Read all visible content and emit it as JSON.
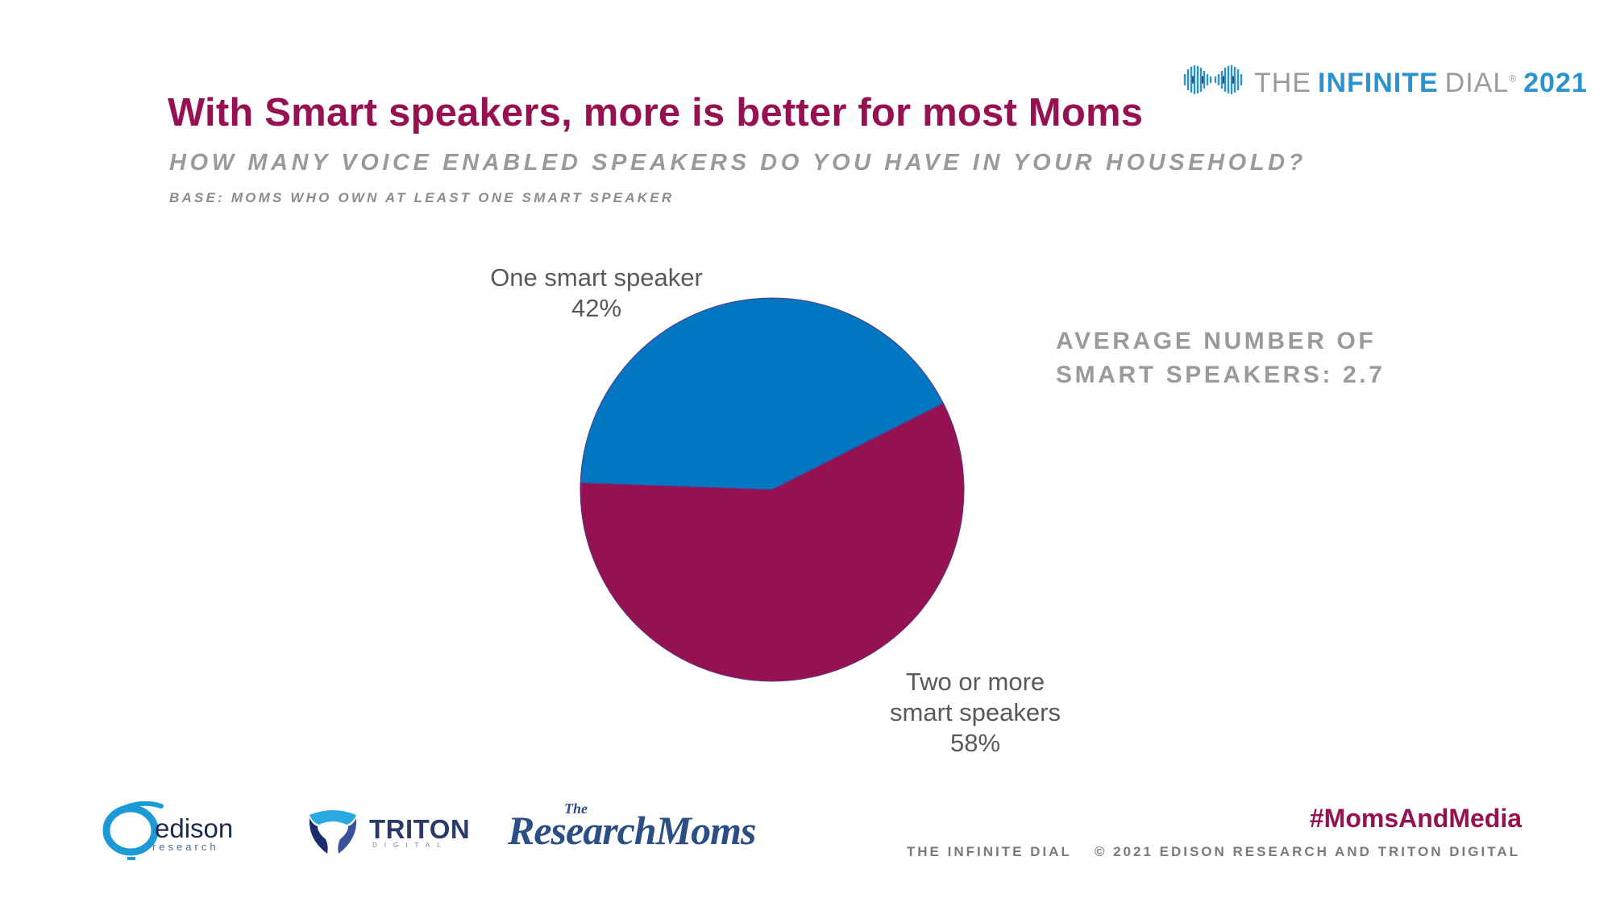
{
  "header": {
    "title": "With Smart speakers, more is better for most Moms",
    "subtitle": "HOW MANY VOICE ENABLED SPEAKERS DO YOU HAVE IN YOUR HOUSEHOLD?",
    "base": "BASE: MOMS WHO OWN AT LEAST ONE SMART SPEAKER"
  },
  "brand": {
    "the": "THE",
    "infinite": "INFINITE",
    "dial": "DIAL",
    "reg": "®",
    "year": "2021",
    "icon": "infinity-waveform-icon"
  },
  "annotation": {
    "line1": "AVERAGE NUMBER OF",
    "line2": "SMART SPEAKERS: 2.7"
  },
  "chart_data": {
    "type": "pie",
    "slices": [
      {
        "label": "One smart speaker",
        "value": 42,
        "value_label": "42%",
        "color": "#0077c0"
      },
      {
        "label": "Two or more smart speakers",
        "value": 58,
        "value_label": "58%",
        "color": "#961151"
      }
    ]
  },
  "labels": {
    "one_line1": "One smart speaker",
    "one_pct": "42%",
    "two_line1": "Two or more",
    "two_line2": "smart speakers",
    "two_pct": "58%"
  },
  "footer": {
    "hashtag": "#MomsAndMedia",
    "infinite_dial": "THE INFINITE DIAL",
    "copyright": "© 2021 EDISON RESEARCH AND TRITON DIGITAL"
  },
  "logos": {
    "edison_name": "edison",
    "edison_sub": "research",
    "triton_name": "TRITON",
    "triton_sub": "DIGITAL",
    "rm_the": "The",
    "rm_name": "ResearchMoms"
  },
  "colors": {
    "accent": "#961151",
    "blue": "#0077c0",
    "brand_blue": "#2a93cf",
    "gray": "#9a9a9a"
  }
}
